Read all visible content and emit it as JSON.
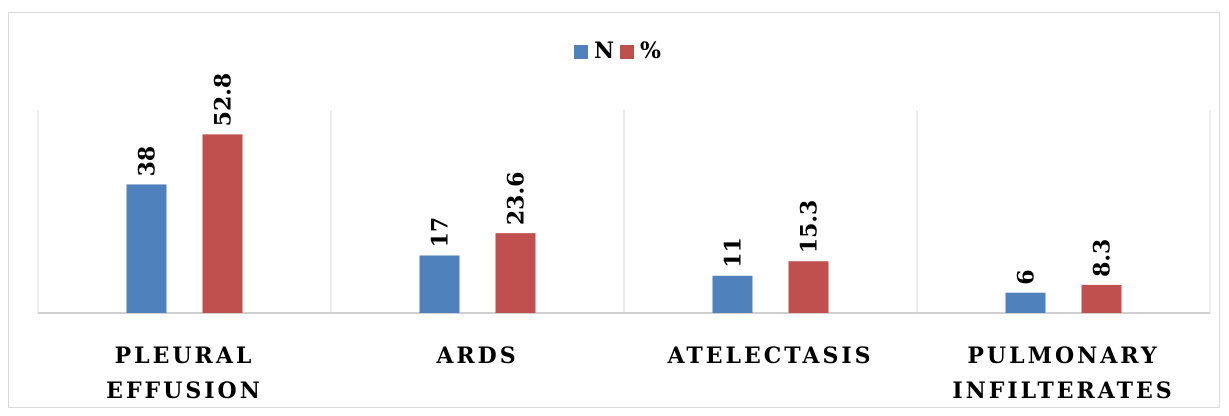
{
  "chart_data": {
    "type": "bar",
    "categories": [
      [
        "PLEURAL",
        "EFFUSION"
      ],
      [
        "ARDS"
      ],
      [
        "ATELECTASIS"
      ],
      [
        "PULMONARY",
        "INFILTERATES"
      ]
    ],
    "series": [
      {
        "name": "N",
        "values": [
          38,
          17,
          11,
          6
        ],
        "labels": [
          "38",
          "17",
          "11",
          "6"
        ],
        "color": "#4f81bd"
      },
      {
        "name": "%",
        "values": [
          52.8,
          23.6,
          15.3,
          8.3
        ],
        "labels": [
          "52.8",
          "23.6",
          "15.3",
          "8.3"
        ],
        "color": "#c0504d"
      }
    ],
    "ylim": [
      0,
      60
    ],
    "grid": "vertical separators between categories",
    "legend_position": "top-center",
    "data_labels": "rotated, above bars"
  }
}
